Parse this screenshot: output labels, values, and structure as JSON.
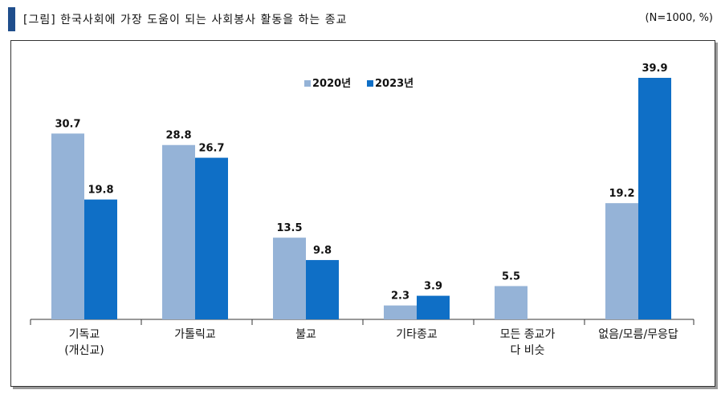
{
  "header": {
    "title": "[그림] 한국사회에 가장 도움이 되는 사회봉사 활동을 하는 종교",
    "note": "(N=1000, %)"
  },
  "colors": {
    "series_2020": "#95b3d7",
    "series_2023": "#0f6fc6",
    "accent": "#1f4e8c"
  },
  "chart_data": {
    "type": "bar",
    "title": "한국사회에 가장 도움이 되는 사회봉사 활동을 하는 종교",
    "unit": "%",
    "categories": [
      [
        "기독교",
        "(개신교)"
      ],
      [
        "가톨릭교"
      ],
      [
        "불교"
      ],
      [
        "기타종교"
      ],
      [
        "모든 종교가",
        "다 비슷"
      ],
      [
        "없음/모름/무응답"
      ]
    ],
    "series": [
      {
        "name": "2020년",
        "values": [
          30.7,
          28.8,
          13.5,
          2.3,
          5.5,
          19.2
        ]
      },
      {
        "name": "2023년",
        "values": [
          19.8,
          26.7,
          9.8,
          3.9,
          null,
          39.9
        ]
      }
    ],
    "value_labels": [
      [
        "30.7",
        "28.8",
        "13.5",
        "2.3",
        "5.5",
        "19.2"
      ],
      [
        "19.8",
        "26.7",
        "9.8",
        "3.9",
        "",
        "39.9"
      ]
    ],
    "ylim": [
      0,
      39.9
    ],
    "legend_position": "top-right",
    "grid": false
  }
}
